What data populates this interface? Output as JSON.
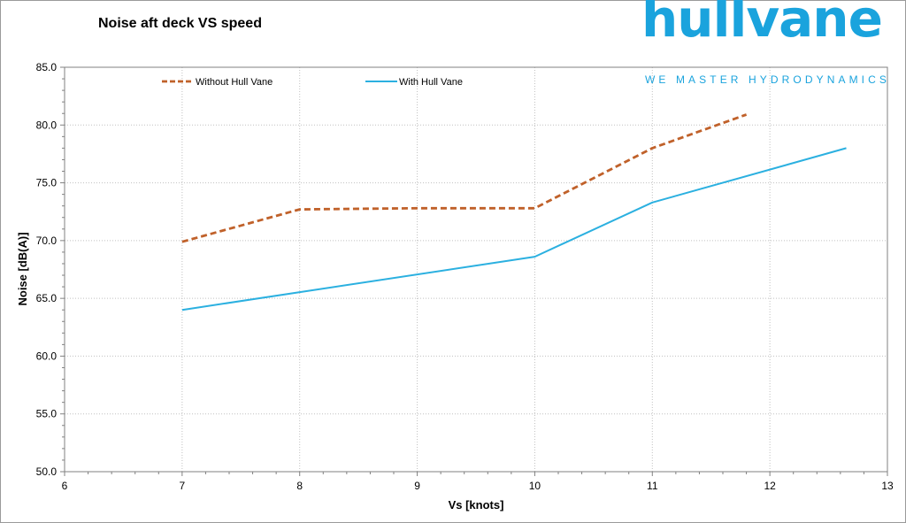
{
  "title": "Noise aft deck VS speed",
  "logo": {
    "word": "hullvane",
    "tagline": "WE MASTER HYDRODYNAMICS",
    "color": "#1aa3dd"
  },
  "chart_data": {
    "type": "line",
    "xlabel": "Vs [knots]",
    "ylabel": "Noise [dB(A)]",
    "xlim": [
      6,
      13
    ],
    "ylim": [
      50,
      85
    ],
    "xticks": [
      "6",
      "7",
      "8",
      "9",
      "10",
      "11",
      "12",
      "13"
    ],
    "yticks": [
      "50.0",
      "55.0",
      "60.0",
      "65.0",
      "70.0",
      "75.0",
      "80.0",
      "85.0"
    ],
    "grid": true,
    "legend_position": "top-left",
    "series": [
      {
        "name": "Without Hull Vane",
        "style": "dashed",
        "color": "#c0612a",
        "x": [
          7,
          8,
          9,
          10,
          11,
          11.8
        ],
        "y": [
          69.9,
          72.7,
          72.8,
          72.8,
          78.0,
          80.9
        ]
      },
      {
        "name": "With Hull Vane",
        "style": "solid",
        "color": "#2bb0e0",
        "x": [
          7,
          10,
          11,
          12.65
        ],
        "y": [
          64.0,
          68.6,
          73.3,
          78.0
        ]
      }
    ]
  }
}
